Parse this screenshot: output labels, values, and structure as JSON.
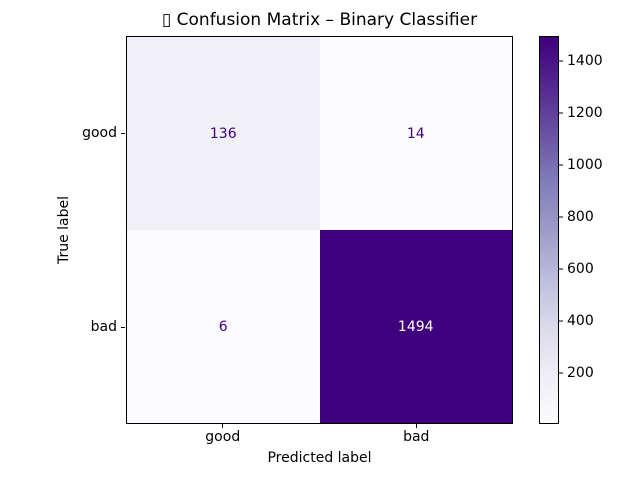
{
  "chart_data": {
    "type": "heatmap",
    "title": "▯ Confusion Matrix – Binary Classifier",
    "xlabel": "Predicted label",
    "ylabel": "True label",
    "x_categories": [
      "good",
      "bad"
    ],
    "y_categories": [
      "good",
      "bad"
    ],
    "matrix": [
      [
        136,
        14
      ],
      [
        6,
        1494
      ]
    ],
    "cell_labels": [
      [
        "136",
        "14"
      ],
      [
        "6",
        "1494"
      ]
    ],
    "cell_colors": [
      [
        "#f2f0f7",
        "#fcfbfd"
      ],
      [
        "#fcfbfd",
        "#3f007d"
      ]
    ],
    "cell_text_colors": [
      [
        "#3f007d",
        "#3f007d"
      ],
      [
        "#3f007d",
        "#ffffff"
      ]
    ],
    "grid": false,
    "legend_position": "right-colorbar",
    "frame_color": "#000000",
    "background_color": "#ffffff",
    "colormap": {
      "gradient_stops": [
        "#fcfbfd",
        "#efedf5",
        "#dadaeb",
        "#bcbddc",
        "#9e9ac8",
        "#807dba",
        "#6a51a3",
        "#54278f",
        "#3f007d"
      ]
    },
    "colorbar": {
      "vmin": 6,
      "vmax": 1494,
      "ticks": [
        200,
        400,
        600,
        800,
        1000,
        1200,
        1400
      ]
    }
  }
}
